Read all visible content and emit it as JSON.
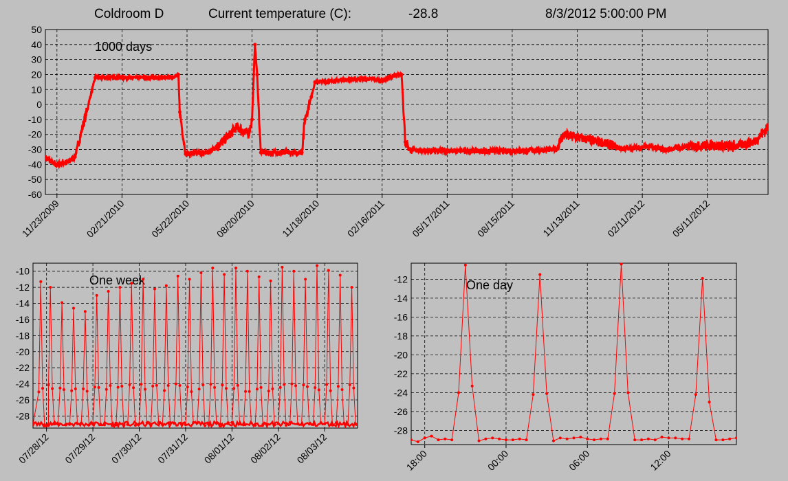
{
  "header": {
    "room": "Coldroom D",
    "temp_label": "Current temperature (C):",
    "temp_value": "-28.8",
    "timestamp": "8/3/2012 5:00:00 PM"
  },
  "colors": {
    "background": "#c0c0c0",
    "series": "#ff0000",
    "grid": "#000000"
  },
  "chart_data": [
    {
      "id": "thousand",
      "type": "line",
      "label": "1000 days",
      "ylim": [
        -60,
        50
      ],
      "yticks": [
        "50",
        "40",
        "30",
        "20",
        "10",
        "0",
        "-10",
        "-20",
        "-30",
        "-40",
        "-50",
        "-60"
      ],
      "xlim": [
        "2009-11-07",
        "2012-08-03"
      ],
      "xticks": [
        "11/23/2009",
        "02/21/2010",
        "05/22/2010",
        "08/20/2010",
        "11/18/2010",
        "02/16/2011",
        "05/17/2011",
        "08/15/2011",
        "11/13/2011",
        "02/11/2012",
        "05/11/2012"
      ],
      "grid": true,
      "x": [
        "2009-11-07",
        "2009-11-20",
        "2009-12-10",
        "2009-12-18",
        "2010-01-15",
        "2010-03-01",
        "2010-04-01",
        "2010-05-01",
        "2010-05-10",
        "2010-05-12",
        "2010-05-20",
        "2010-06-20",
        "2010-07-10",
        "2010-07-30",
        "2010-08-15",
        "2010-08-20",
        "2010-08-24",
        "2010-08-27",
        "2010-09-01",
        "2010-09-30",
        "2010-10-28",
        "2010-11-01",
        "2010-11-10",
        "2010-11-15",
        "2010-12-15",
        "2011-01-15",
        "2011-02-05",
        "2011-02-15",
        "2011-03-05",
        "2011-03-15",
        "2011-03-20",
        "2011-03-25",
        "2011-04-15",
        "2011-06-15",
        "2011-08-15",
        "2011-10-15",
        "2011-10-25",
        "2011-11-13",
        "2011-12-15",
        "2012-01-15",
        "2012-02-15",
        "2012-03-15",
        "2012-04-15",
        "2012-05-15",
        "2012-06-15",
        "2012-07-15",
        "2012-08-03"
      ],
      "y": [
        -35,
        -40,
        -38,
        -35,
        18,
        18,
        18,
        18,
        20,
        -5,
        -33,
        -32,
        -25,
        -15,
        -20,
        -10,
        40,
        20,
        -32,
        -32,
        -32,
        -10,
        5,
        15,
        16,
        17,
        17,
        16,
        19,
        20,
        -25,
        -30,
        -31,
        -31,
        -31,
        -30,
        -20,
        -22,
        -25,
        -30,
        -28,
        -30,
        -28,
        -27,
        -28,
        -25,
        -15
      ]
    },
    {
      "id": "week",
      "type": "line",
      "label": "One week",
      "ylim": [
        -29.5,
        -9
      ],
      "yticks": [
        "-10",
        "-12",
        "-14",
        "-16",
        "-18",
        "-20",
        "-22",
        "-24",
        "-26",
        "-28"
      ],
      "xlim": [
        "2012-07-27 17:00",
        "2012-08-03 17:00"
      ],
      "xticks": [
        "07/28/12",
        "07/29/12",
        "07/30/12",
        "07/31/12",
        "08/01/12",
        "08/02/12",
        "08/03/12"
      ],
      "grid": true,
      "peak_times": [
        "2012-07-27 21:00",
        "2012-07-28 02:00",
        "2012-07-28 08:00",
        "2012-07-28 14:00",
        "2012-07-28 20:00",
        "2012-07-29 02:00",
        "2012-07-29 08:00",
        "2012-07-29 14:00",
        "2012-07-29 20:00",
        "2012-07-30 02:00",
        "2012-07-30 08:00",
        "2012-07-30 14:00",
        "2012-07-30 20:00",
        "2012-07-31 02:00",
        "2012-07-31 08:00",
        "2012-07-31 14:00",
        "2012-07-31 20:00",
        "2012-08-01 02:00",
        "2012-08-01 08:00",
        "2012-08-01 14:00",
        "2012-08-01 20:00",
        "2012-08-02 02:00",
        "2012-08-02 08:00",
        "2012-08-02 14:00",
        "2012-08-02 20:00",
        "2012-08-03 02:00",
        "2012-08-03 08:00",
        "2012-08-03 14:00"
      ],
      "peak_values": [
        -11.3,
        -12.0,
        -13.9,
        -14.6,
        -15.0,
        -13.0,
        -12.5,
        -12.0,
        -11.5,
        -11.0,
        -12.2,
        -11.8,
        -10.6,
        -11.0,
        -10.2,
        -9.6,
        -10.4,
        -9.6,
        -10.0,
        -10.7,
        -11.2,
        -9.5,
        -10.0,
        -11.0,
        -9.3,
        -9.9,
        -10.5,
        -12.0
      ],
      "baseline": -29.0
    },
    {
      "id": "day",
      "type": "line",
      "label": "One day",
      "ylim": [
        -29.5,
        -10.3
      ],
      "yticks": [
        "-12",
        "-14",
        "-16",
        "-18",
        "-20",
        "-22",
        "-24",
        "-26",
        "-28"
      ],
      "xlim": [
        "2012-08-02 17:00",
        "2012-08-03 17:00"
      ],
      "xticks": [
        "18:00",
        "00:00",
        "06:00",
        "12:00"
      ],
      "grid": true,
      "x": [
        "2012-08-02 17:00",
        "2012-08-02 17:30",
        "2012-08-02 18:00",
        "2012-08-02 18:30",
        "2012-08-02 19:00",
        "2012-08-02 19:30",
        "2012-08-02 20:00",
        "2012-08-02 20:30",
        "2012-08-02 21:00",
        "2012-08-02 21:30",
        "2012-08-02 22:00",
        "2012-08-02 22:30",
        "2012-08-02 23:00",
        "2012-08-02 23:30",
        "2012-08-03 00:00",
        "2012-08-03 00:30",
        "2012-08-03 01:00",
        "2012-08-03 01:30",
        "2012-08-03 02:00",
        "2012-08-03 02:30",
        "2012-08-03 03:00",
        "2012-08-03 03:30",
        "2012-08-03 04:00",
        "2012-08-03 04:30",
        "2012-08-03 05:00",
        "2012-08-03 05:30",
        "2012-08-03 06:00",
        "2012-08-03 06:30",
        "2012-08-03 07:00",
        "2012-08-03 07:30",
        "2012-08-03 08:00",
        "2012-08-03 08:30",
        "2012-08-03 09:00",
        "2012-08-03 09:30",
        "2012-08-03 10:00",
        "2012-08-03 10:30",
        "2012-08-03 11:00",
        "2012-08-03 11:30",
        "2012-08-03 12:00",
        "2012-08-03 12:30",
        "2012-08-03 13:00",
        "2012-08-03 13:30",
        "2012-08-03 14:00",
        "2012-08-03 14:30",
        "2012-08-03 15:00",
        "2012-08-03 15:30",
        "2012-08-03 16:00",
        "2012-08-03 16:30",
        "2012-08-03 17:00"
      ],
      "y": [
        -29.0,
        -29.2,
        -28.8,
        -28.6,
        -29.0,
        -28.9,
        -29.0,
        -24.0,
        -10.5,
        -23.3,
        -29.1,
        -28.9,
        -28.8,
        -28.9,
        -29.0,
        -29.0,
        -28.9,
        -29.0,
        -24.2,
        -11.5,
        -24.1,
        -29.1,
        -28.8,
        -28.9,
        -28.8,
        -28.7,
        -28.9,
        -29.0,
        -28.9,
        -28.9,
        -24.1,
        -10.4,
        -24.0,
        -29.0,
        -29.0,
        -28.9,
        -29.0,
        -28.7,
        -28.8,
        -28.8,
        -28.9,
        -28.9,
        -24.2,
        -11.9,
        -25.0,
        -29.0,
        -29.0,
        -28.9,
        -28.8
      ]
    }
  ]
}
